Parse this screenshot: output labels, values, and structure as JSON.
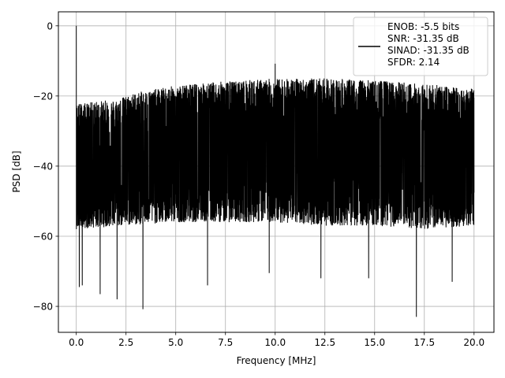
{
  "chart_data": {
    "type": "line",
    "xlabel": "Frequency [MHz]",
    "ylabel": "PSD [dB]",
    "xlim": [
      -0.9,
      21.0
    ],
    "ylim": [
      -87.4,
      4.0
    ],
    "x_ticks": [
      0.0,
      2.5,
      5.0,
      7.5,
      10.0,
      12.5,
      15.0,
      17.5,
      20.0
    ],
    "x_tick_labels": [
      "0.0",
      "2.5",
      "5.0",
      "7.5",
      "10.0",
      "12.5",
      "15.0",
      "17.5",
      "20.0"
    ],
    "y_ticks": [
      0,
      -20,
      -40,
      -60,
      -80
    ],
    "y_tick_labels": [
      "0",
      "−20",
      "−40",
      "−60",
      "−80"
    ],
    "grid": true,
    "legend_position": "top-right",
    "line_color": "#000000",
    "legend_entries": [
      "ENOB: -5.5 bits",
      "SNR: -31.35 dB",
      "SINAD: -31.35 dB",
      "SFDR: 2.14"
    ],
    "series": [
      {
        "x_range": [
          0.0,
          20.0
        ],
        "upper_envelope": [
          [
            0.0,
            -22
          ],
          [
            0.5,
            -22
          ],
          [
            1.0,
            -21.5
          ],
          [
            2.0,
            -21
          ],
          [
            3.0,
            -19
          ],
          [
            4.0,
            -18
          ],
          [
            5.0,
            -17
          ],
          [
            7.0,
            -16
          ],
          [
            10.0,
            -15
          ],
          [
            12.5,
            -15
          ],
          [
            15.0,
            -15.5
          ],
          [
            17.5,
            -16.5
          ],
          [
            20.0,
            -18
          ]
        ],
        "lower_envelope": [
          [
            0.0,
            -58
          ],
          [
            2.5,
            -57
          ],
          [
            5.0,
            -56
          ],
          [
            7.5,
            -56
          ],
          [
            10.0,
            -56
          ],
          [
            12.5,
            -57
          ],
          [
            15.0,
            -57
          ],
          [
            17.5,
            -58
          ],
          [
            20.0,
            -57
          ]
        ],
        "peaks": [
          [
            0.0,
            0.0
          ],
          [
            10.0,
            -10.8
          ],
          [
            7.3,
            -17.3
          ]
        ],
        "dips": [
          [
            0.15,
            -74.5
          ],
          [
            0.3,
            -74.0
          ],
          [
            1.2,
            -76.5
          ],
          [
            2.05,
            -78.0
          ],
          [
            3.35,
            -80.8
          ],
          [
            6.6,
            -74.0
          ],
          [
            9.7,
            -70.5
          ],
          [
            12.3,
            -72.0
          ],
          [
            14.7,
            -72.0
          ],
          [
            17.1,
            -83.0
          ],
          [
            18.9,
            -73.0
          ]
        ]
      }
    ]
  }
}
